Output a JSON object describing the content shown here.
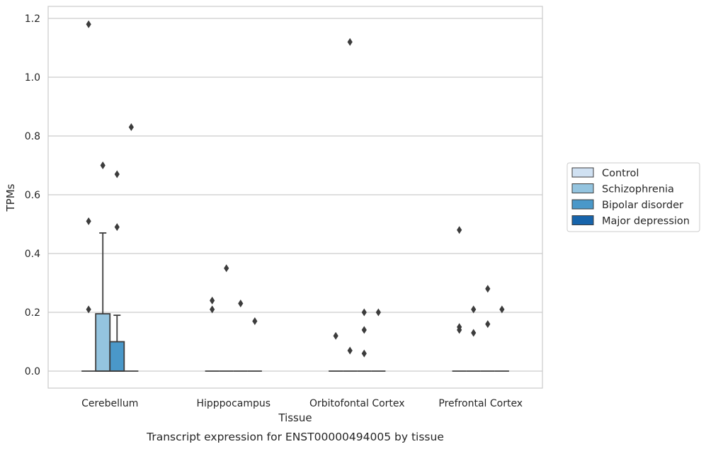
{
  "chart_data": {
    "type": "box",
    "xlabel": "Tissue",
    "ylabel": "TPMs",
    "caption": "Transcript expression for ENST00000494005 by tissue",
    "categories": [
      "Cerebellum",
      "Hipppocampus",
      "Orbitofontal Cortex",
      "Prefrontal Cortex"
    ],
    "ylim": [
      -0.06,
      1.24
    ],
    "yticks": [
      0.0,
      0.2,
      0.4,
      0.6,
      0.8,
      1.0,
      1.2
    ],
    "ytick_labels": [
      "0.0",
      "0.2",
      "0.4",
      "0.6",
      "0.8",
      "1.0",
      "1.2"
    ],
    "grid": true,
    "legend_position": "right, outside plot",
    "series": [
      {
        "name": "Control",
        "color": "#d0e1f2",
        "boxes": [
          {
            "q1": 0,
            "median": 0,
            "q3": 0,
            "whisker_low": 0,
            "whisker_high": 0,
            "outliers": [
              0.21,
              0.51,
              1.18
            ]
          },
          {
            "q1": 0,
            "median": 0,
            "q3": 0,
            "whisker_low": 0,
            "whisker_high": 0,
            "outliers": [
              0.21,
              0.24
            ]
          },
          {
            "q1": 0,
            "median": 0,
            "q3": 0,
            "whisker_low": 0,
            "whisker_high": 0,
            "outliers": [
              0.12
            ]
          },
          {
            "q1": 0,
            "median": 0,
            "q3": 0,
            "whisker_low": 0,
            "whisker_high": 0,
            "outliers": [
              0.14,
              0.15,
              0.48
            ]
          }
        ]
      },
      {
        "name": "Schizophrenia",
        "color": "#94c4df",
        "boxes": [
          {
            "q1": 0,
            "median": 0,
            "q3": 0.195,
            "whisker_low": 0,
            "whisker_high": 0.47,
            "outliers": [
              0.7
            ]
          },
          {
            "q1": 0,
            "median": 0,
            "q3": 0,
            "whisker_low": 0,
            "whisker_high": 0,
            "outliers": [
              0.35
            ]
          },
          {
            "q1": 0,
            "median": 0,
            "q3": 0,
            "whisker_low": 0,
            "whisker_high": 0,
            "outliers": [
              0.07,
              1.12
            ]
          },
          {
            "q1": 0,
            "median": 0,
            "q3": 0,
            "whisker_low": 0,
            "whisker_high": 0,
            "outliers": [
              0.13,
              0.21
            ]
          }
        ]
      },
      {
        "name": "Bipolar disorder",
        "color": "#4a98c9",
        "boxes": [
          {
            "q1": 0,
            "median": 0,
            "q3": 0.1,
            "whisker_low": 0,
            "whisker_high": 0.19,
            "outliers": [
              0.49,
              0.67
            ]
          },
          {
            "q1": 0,
            "median": 0,
            "q3": 0,
            "whisker_low": 0,
            "whisker_high": 0,
            "outliers": [
              0.23
            ]
          },
          {
            "q1": 0,
            "median": 0,
            "q3": 0,
            "whisker_low": 0,
            "whisker_high": 0,
            "outliers": [
              0.06,
              0.14,
              0.2
            ]
          },
          {
            "q1": 0,
            "median": 0,
            "q3": 0,
            "whisker_low": 0,
            "whisker_high": 0,
            "outliers": [
              0.16,
              0.28
            ]
          }
        ]
      },
      {
        "name": "Major depression",
        "color": "#1764ab",
        "boxes": [
          {
            "q1": 0,
            "median": 0,
            "q3": 0,
            "whisker_low": 0,
            "whisker_high": 0,
            "outliers": [
              0.83
            ]
          },
          {
            "q1": 0,
            "median": 0,
            "q3": 0,
            "whisker_low": 0,
            "whisker_high": 0,
            "outliers": [
              0.17
            ]
          },
          {
            "q1": 0,
            "median": 0,
            "q3": 0,
            "whisker_low": 0,
            "whisker_high": 0,
            "outliers": [
              0.2
            ]
          },
          {
            "q1": 0,
            "median": 0,
            "q3": 0,
            "whisker_low": 0,
            "whisker_high": 0,
            "outliers": [
              0.21
            ]
          }
        ]
      }
    ]
  }
}
